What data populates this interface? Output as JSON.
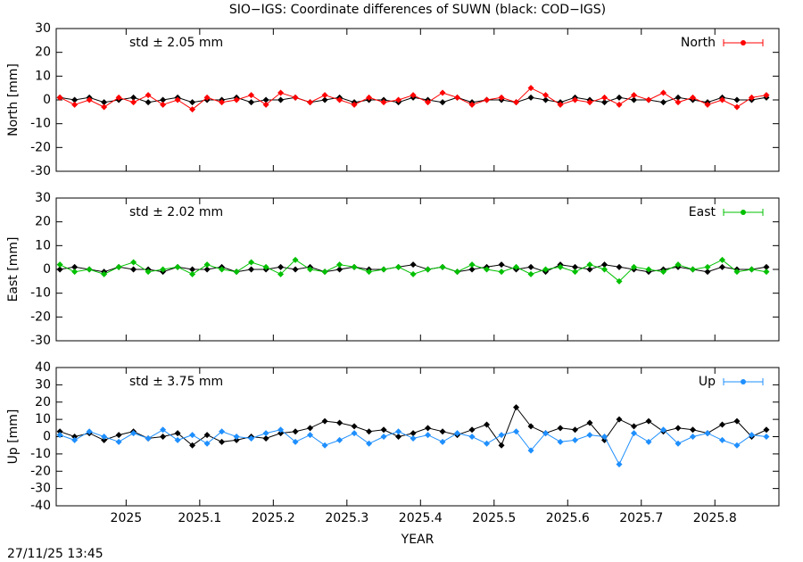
{
  "title": "SIO−IGS: Coordinate differences of SUWN (black: COD−IGS)",
  "timestamp": "27/11/25 13:45",
  "chart_data": [
    {
      "type": "line",
      "ylabel": "North [mm]",
      "annotation": "std ± 2.05 mm",
      "legend": "top-right",
      "xlim": [
        2024.905,
        2025.887
      ],
      "xticks": [
        2025,
        2025.1,
        2025.2,
        2025.3,
        2025.4,
        2025.5,
        2025.6,
        2025.7,
        2025.8
      ],
      "ylim": [
        -30,
        30
      ],
      "yticks": [
        -30,
        -20,
        -10,
        0,
        10,
        20,
        30
      ],
      "x": [
        2024.91,
        2024.93,
        2024.95,
        2024.97,
        2024.99,
        2025.01,
        2025.03,
        2025.05,
        2025.07,
        2025.09,
        2025.11,
        2025.13,
        2025.15,
        2025.17,
        2025.19,
        2025.21,
        2025.23,
        2025.25,
        2025.27,
        2025.29,
        2025.31,
        2025.33,
        2025.35,
        2025.37,
        2025.39,
        2025.41,
        2025.43,
        2025.45,
        2025.47,
        2025.49,
        2025.51,
        2025.53,
        2025.55,
        2025.57,
        2025.59,
        2025.61,
        2025.63,
        2025.65,
        2025.67,
        2025.69,
        2025.71,
        2025.73,
        2025.75,
        2025.77,
        2025.79,
        2025.81,
        2025.83,
        2025.85,
        2025.87
      ],
      "series": [
        {
          "color": "#000000",
          "values": [
            1,
            0,
            1,
            -1,
            0,
            1,
            -1,
            0,
            1,
            -1,
            0,
            0,
            1,
            -1,
            0,
            0,
            1,
            -1,
            0,
            1,
            -1,
            0,
            0,
            -1,
            1,
            0,
            -1,
            1,
            -1,
            0,
            0,
            -1,
            1,
            0,
            -1,
            1,
            0,
            -1,
            1,
            0,
            0,
            -1,
            1,
            0,
            -1,
            1,
            0,
            0,
            1
          ]
        },
        {
          "name": "North",
          "color": "#ff0000",
          "values": [
            1,
            -2,
            0,
            -3,
            1,
            -1,
            2,
            -2,
            0,
            -4,
            1,
            -1,
            0,
            2,
            -2,
            3,
            1,
            -1,
            2,
            0,
            -2,
            1,
            -1,
            0,
            2,
            -1,
            3,
            1,
            -2,
            0,
            1,
            -1,
            5,
            2,
            -2,
            0,
            -1,
            1,
            -2,
            2,
            0,
            3,
            -1,
            1,
            -2,
            0,
            -3,
            1,
            2
          ]
        }
      ]
    },
    {
      "type": "line",
      "ylabel": "East [mm]",
      "annotation": "std ± 2.02 mm",
      "legend": "top-right",
      "xlim": [
        2024.905,
        2025.887
      ],
      "xticks": [
        2025,
        2025.1,
        2025.2,
        2025.3,
        2025.4,
        2025.5,
        2025.6,
        2025.7,
        2025.8
      ],
      "ylim": [
        -30,
        30
      ],
      "yticks": [
        -30,
        -20,
        -10,
        0,
        10,
        20,
        30
      ],
      "x": [
        2024.91,
        2024.93,
        2024.95,
        2024.97,
        2024.99,
        2025.01,
        2025.03,
        2025.05,
        2025.07,
        2025.09,
        2025.11,
        2025.13,
        2025.15,
        2025.17,
        2025.19,
        2025.21,
        2025.23,
        2025.25,
        2025.27,
        2025.29,
        2025.31,
        2025.33,
        2025.35,
        2025.37,
        2025.39,
        2025.41,
        2025.43,
        2025.45,
        2025.47,
        2025.49,
        2025.51,
        2025.53,
        2025.55,
        2025.57,
        2025.59,
        2025.61,
        2025.63,
        2025.65,
        2025.67,
        2025.69,
        2025.71,
        2025.73,
        2025.75,
        2025.77,
        2025.79,
        2025.81,
        2025.83,
        2025.85,
        2025.87
      ],
      "series": [
        {
          "color": "#000000",
          "values": [
            0,
            1,
            0,
            -1,
            1,
            0,
            0,
            -1,
            1,
            0,
            0,
            1,
            -1,
            0,
            0,
            1,
            0,
            1,
            -1,
            0,
            1,
            0,
            0,
            1,
            2,
            0,
            1,
            -1,
            0,
            1,
            2,
            0,
            1,
            -1,
            2,
            1,
            0,
            2,
            1,
            0,
            -1,
            0,
            1,
            0,
            -1,
            1,
            0,
            0,
            1
          ]
        },
        {
          "name": "East",
          "color": "#00c000",
          "values": [
            2,
            -1,
            0,
            -2,
            1,
            3,
            -1,
            0,
            1,
            -2,
            2,
            0,
            -1,
            3,
            1,
            -2,
            4,
            0,
            -1,
            2,
            1,
            -1,
            0,
            1,
            -2,
            0,
            1,
            -1,
            2,
            0,
            -1,
            1,
            -2,
            0,
            1,
            -1,
            2,
            0,
            -5,
            1,
            0,
            -1,
            2,
            0,
            1,
            4,
            -1,
            0,
            -1
          ]
        }
      ]
    },
    {
      "type": "line",
      "ylabel": "Up [mm]",
      "annotation": "std ± 3.75 mm",
      "legend": "top-right",
      "xlabel": "YEAR",
      "xlim": [
        2024.905,
        2025.887
      ],
      "xticks": [
        2025,
        2025.1,
        2025.2,
        2025.3,
        2025.4,
        2025.5,
        2025.6,
        2025.7,
        2025.8
      ],
      "ylim": [
        -40,
        40
      ],
      "yticks": [
        -40,
        -30,
        -20,
        -10,
        0,
        10,
        20,
        30,
        40
      ],
      "x": [
        2024.91,
        2024.93,
        2024.95,
        2024.97,
        2024.99,
        2025.01,
        2025.03,
        2025.05,
        2025.07,
        2025.09,
        2025.11,
        2025.13,
        2025.15,
        2025.17,
        2025.19,
        2025.21,
        2025.23,
        2025.25,
        2025.27,
        2025.29,
        2025.31,
        2025.33,
        2025.35,
        2025.37,
        2025.39,
        2025.41,
        2025.43,
        2025.45,
        2025.47,
        2025.49,
        2025.51,
        2025.53,
        2025.55,
        2025.57,
        2025.59,
        2025.61,
        2025.63,
        2025.65,
        2025.67,
        2025.69,
        2025.71,
        2025.73,
        2025.75,
        2025.77,
        2025.79,
        2025.81,
        2025.83,
        2025.85,
        2025.87
      ],
      "series": [
        {
          "color": "#000000",
          "values": [
            3,
            0,
            2,
            -2,
            1,
            3,
            -1,
            0,
            2,
            -5,
            1,
            -3,
            -2,
            0,
            -1,
            2,
            3,
            5,
            9,
            8,
            6,
            3,
            4,
            0,
            2,
            5,
            3,
            1,
            4,
            7,
            -5,
            17,
            6,
            2,
            5,
            4,
            8,
            -2,
            10,
            6,
            9,
            3,
            5,
            4,
            2,
            7,
            9,
            0,
            4
          ]
        },
        {
          "name": "Up",
          "color": "#1e8fff",
          "values": [
            1,
            -2,
            3,
            0,
            -3,
            2,
            -1,
            4,
            -2,
            1,
            -4,
            3,
            0,
            -1,
            2,
            4,
            -3,
            1,
            -5,
            -2,
            2,
            -4,
            0,
            3,
            -1,
            1,
            -3,
            2,
            0,
            -4,
            1,
            3,
            -8,
            2,
            -3,
            -2,
            1,
            0,
            -16,
            2,
            -3,
            4,
            -4,
            0,
            2,
            -2,
            -5,
            1,
            0
          ]
        }
      ]
    }
  ]
}
